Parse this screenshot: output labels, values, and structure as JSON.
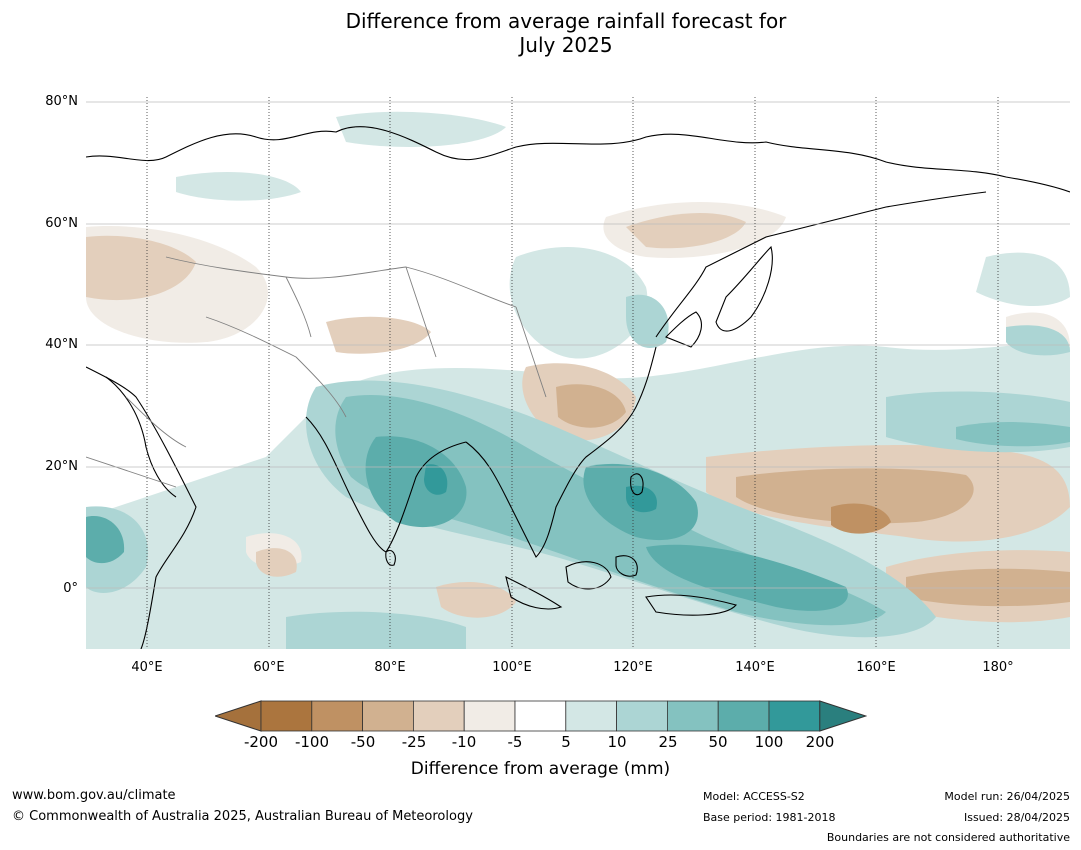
{
  "title_line1": "Difference from average rainfall forecast for",
  "title_line2": "July 2025",
  "lat_labels": [
    "80°N",
    "60°N",
    "40°N",
    "20°N",
    "0°"
  ],
  "lon_labels": [
    "40°E",
    "60°E",
    "80°E",
    "100°E",
    "120°E",
    "140°E",
    "160°E",
    "180°"
  ],
  "colorbar": {
    "title": "Difference from average (mm)",
    "ticks": [
      "-200",
      "-100",
      "-50",
      "-25",
      "-10",
      "-5",
      "5",
      "10",
      "25",
      "50",
      "100",
      "200"
    ],
    "colors": [
      "#a5713c",
      "#ab753e",
      "#bf9163",
      "#d1b190",
      "#e3cfbc",
      "#f1ece6",
      "#ffffff",
      "#d3e7e5",
      "#acd5d4",
      "#84c2c0",
      "#5cadab",
      "#32999a",
      "#2a7f7e"
    ]
  },
  "footer": {
    "website": "www.bom.gov.au/climate",
    "copyright": "© Commonwealth of Australia 2025, Australian Bureau of Meteorology",
    "model": "Model: ACCESS-S2",
    "base_period": "Base period: 1981-2018",
    "model_run": "Model run: 26/04/2025",
    "issued": "Issued: 28/04/2025",
    "disclaimer": "Boundaries are not considered authoritative"
  }
}
